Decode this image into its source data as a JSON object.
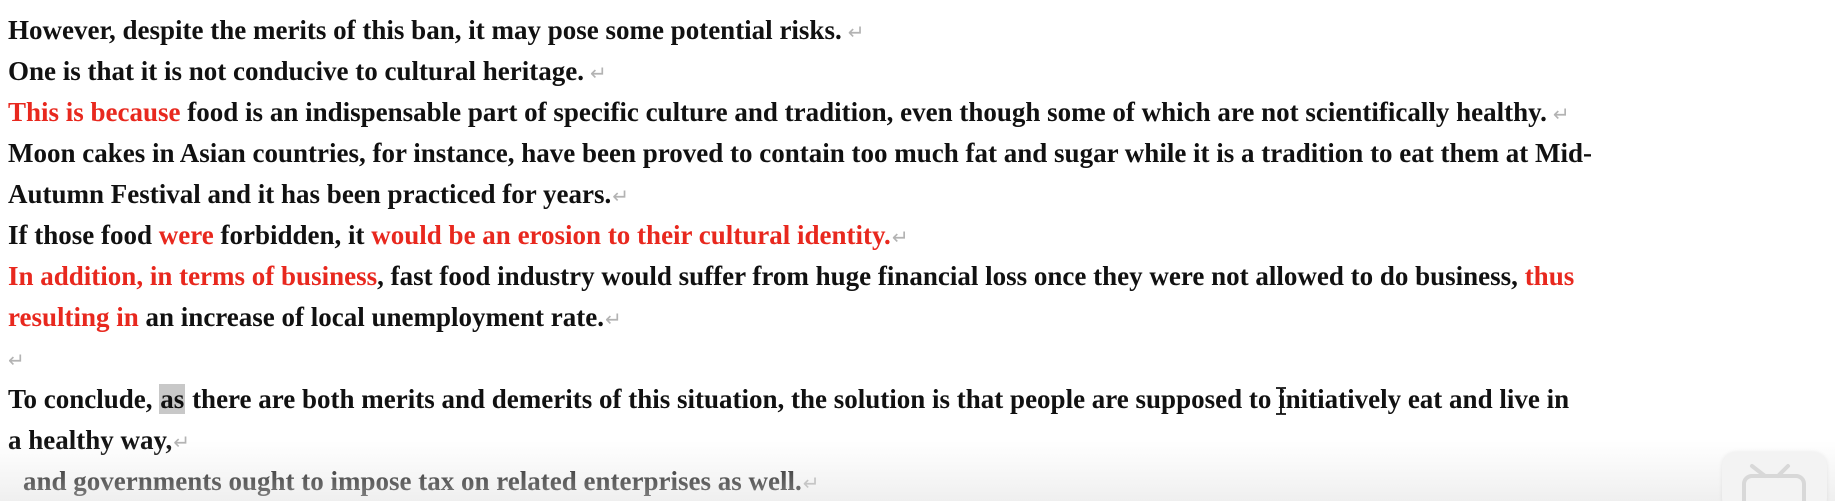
{
  "document": {
    "paragraph_mark": "↵",
    "lines": {
      "l1": {
        "text": "However, despite the merits of this ban, it may pose some potential risks."
      },
      "l2": {
        "text": "One is that it is not conducive to cultural heritage."
      },
      "l3": {
        "red": "This is because",
        "text": " food is an indispensable part of specific culture and tradition, even though some of which are not scientifically healthy."
      },
      "l4": {
        "text": "Moon cakes in Asian countries, for instance, have been proved to contain too much fat and sugar while it is a tradition to eat them at Mid-"
      },
      "l5": {
        "text": "Autumn Festival and it has been practiced for years."
      },
      "l6": {
        "a": "If those food ",
        "red1": "were",
        "b": " forbidden, it ",
        "red2": "would be an erosion to their cultural identity."
      },
      "l7": {
        "red1": "In addition, in terms of business",
        "a": ", fast food industry would suffer from huge financial loss once they were not allowed to do business, ",
        "red2": "thus"
      },
      "l8": {
        "red": "resulting in",
        "text": " an increase of local unemployment rate."
      },
      "l10": {
        "a": "To conclude, ",
        "highlight": "as",
        "b": " there are both merits and demerits of this situation, the solution is that people are supposed to initiatively eat and live in"
      },
      "l11": {
        "text": "a healthy way,"
      },
      "l12": {
        "text": "and governments ought to impose tax on related enterprises as well."
      }
    }
  },
  "colors": {
    "body_text": "#111111",
    "emphasis_red": "#e8281e",
    "highlight_gray": "#c8c8c8",
    "paragraph_mark": "#b3b3b3"
  },
  "icons": {
    "paragraph_mark": "return-arrow-icon",
    "cursor": "text-cursor-icon",
    "watermark": "video-watermark-icon"
  }
}
